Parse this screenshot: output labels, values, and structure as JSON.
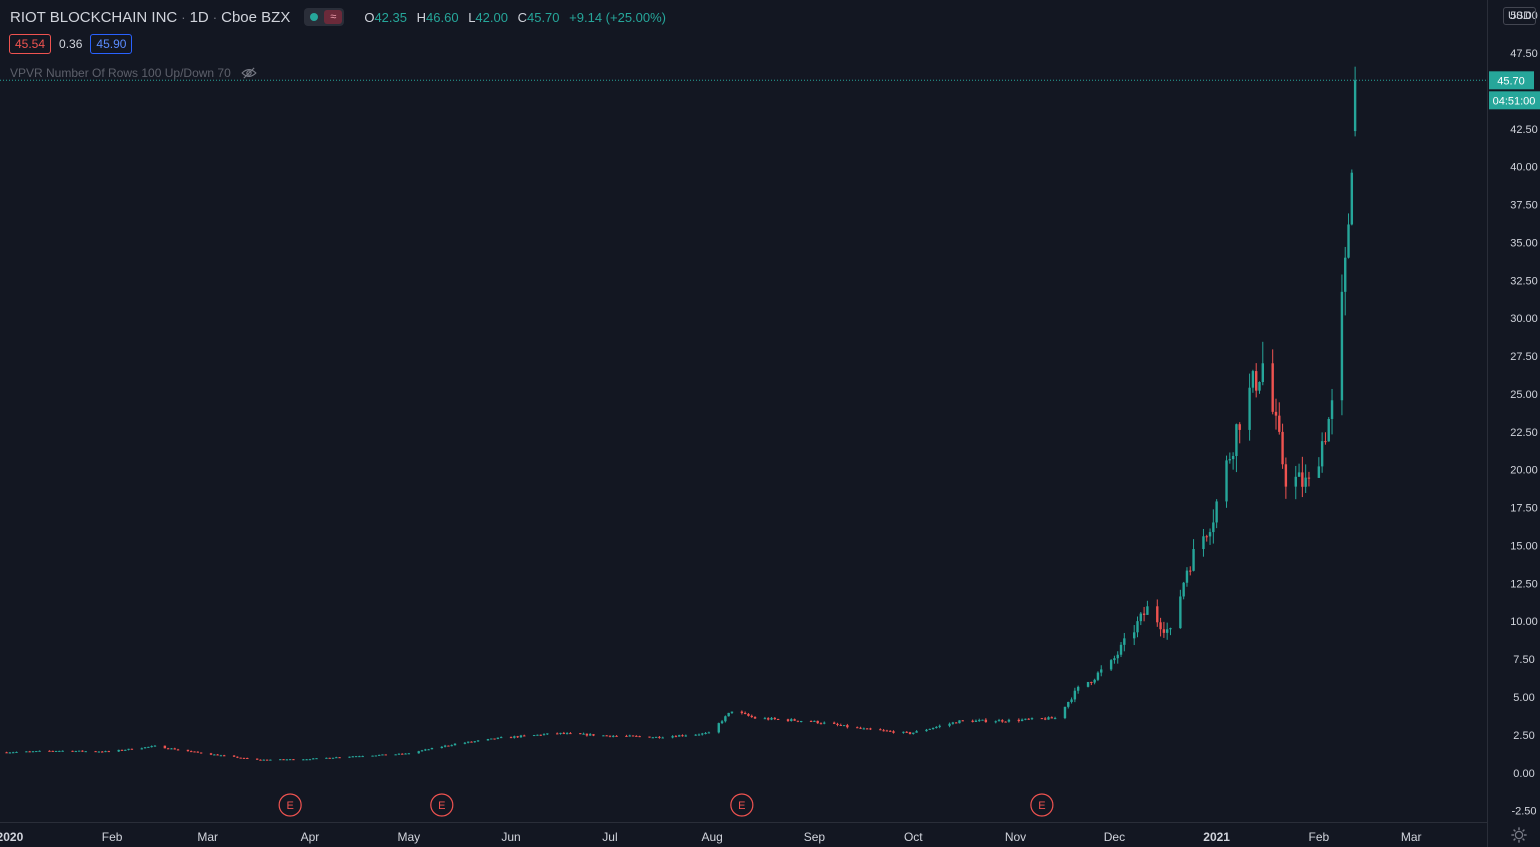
{
  "legend": {
    "symbol_name": "RIOT BLOCKCHAIN INC",
    "interval": "1D",
    "exchange": "Cboe BZX",
    "open_label": "O",
    "open": "42.35",
    "high_label": "H",
    "high": "46.60",
    "low_label": "L",
    "low": "42.00",
    "close_label": "C",
    "close": "45.70",
    "change": "+9.14 (+25.00%)"
  },
  "quote": {
    "bid": "45.54",
    "spread": "0.36",
    "ask": "45.90"
  },
  "indicator": {
    "label": "VPVR Number Of Rows 100 Up/Down 70",
    "icon": "eye-off-icon"
  },
  "price_scale": {
    "currency": "USD",
    "settings_icon": "gear-icon"
  },
  "last_price": {
    "value": "45.70",
    "countdown": "04:51:00"
  },
  "events": {
    "earnings_label": "E",
    "dates": [
      "2020-03-26",
      "2020-05-11",
      "2020-08-10",
      "2020-11-09"
    ]
  },
  "colors": {
    "background": "#131722",
    "up": "#26a69a",
    "down": "#ef5350",
    "grid": "#1e222d",
    "text": "#d1d4dc"
  },
  "chart_data": {
    "type": "candlestick",
    "title": "RIOT BLOCKCHAIN INC · 1D · Cboe BZX",
    "y_ticks": [
      "50.00",
      "47.50",
      "42.50",
      "40.00",
      "37.50",
      "35.00",
      "32.50",
      "30.00",
      "27.50",
      "25.00",
      "22.50",
      "20.00",
      "17.50",
      "15.00",
      "12.50",
      "10.00",
      "7.50",
      "5.00",
      "2.50",
      "0.00",
      "-2.50"
    ],
    "x_ticks": [
      {
        "label": "2020",
        "date": "2020-01-01"
      },
      {
        "label": "Feb",
        "date": "2020-02-01"
      },
      {
        "label": "Mar",
        "date": "2020-03-01"
      },
      {
        "label": "Apr",
        "date": "2020-04-01"
      },
      {
        "label": "May",
        "date": "2020-05-01"
      },
      {
        "label": "Jun",
        "date": "2020-06-01"
      },
      {
        "label": "Jul",
        "date": "2020-07-01"
      },
      {
        "label": "Aug",
        "date": "2020-08-01"
      },
      {
        "label": "Sep",
        "date": "2020-09-01"
      },
      {
        "label": "Oct",
        "date": "2020-10-01"
      },
      {
        "label": "Nov",
        "date": "2020-11-01"
      },
      {
        "label": "Dec",
        "date": "2020-12-01"
      },
      {
        "label": "2021",
        "date": "2021-01-01"
      },
      {
        "label": "Feb",
        "date": "2021-02-01"
      },
      {
        "label": "Mar",
        "date": "2021-03-01"
      }
    ],
    "ylim": [
      -3.25,
      51.0
    ],
    "x_range": [
      "2019-12-29",
      "2021-03-24"
    ],
    "grid": false,
    "close_series": [
      [
        "2019-12-31",
        1.35
      ],
      [
        "2020-01-15",
        1.45
      ],
      [
        "2020-01-31",
        1.4
      ],
      [
        "2020-02-14",
        1.75
      ],
      [
        "2020-02-28",
        1.3
      ],
      [
        "2020-03-16",
        0.85
      ],
      [
        "2020-03-31",
        0.9
      ],
      [
        "2020-04-15",
        1.1
      ],
      [
        "2020-04-30",
        1.25
      ],
      [
        "2020-05-15",
        1.9
      ],
      [
        "2020-05-29",
        2.3
      ],
      [
        "2020-06-15",
        2.6
      ],
      [
        "2020-06-30",
        2.45
      ],
      [
        "2020-07-15",
        2.35
      ],
      [
        "2020-07-31",
        2.6
      ],
      [
        "2020-08-07",
        4.1
      ],
      [
        "2020-08-14",
        3.6
      ],
      [
        "2020-08-31",
        3.4
      ],
      [
        "2020-09-15",
        2.9
      ],
      [
        "2020-09-30",
        2.6
      ],
      [
        "2020-10-15",
        3.4
      ],
      [
        "2020-10-31",
        3.45
      ],
      [
        "2020-11-13",
        3.6
      ],
      [
        "2020-11-20",
        5.5
      ],
      [
        "2020-11-30",
        7.2
      ],
      [
        "2020-12-11",
        10.8
      ],
      [
        "2020-12-18",
        9.2
      ],
      [
        "2020-12-23",
        13.5
      ],
      [
        "2020-12-31",
        17.0
      ],
      [
        "2021-01-08",
        23.5
      ],
      [
        "2021-01-15",
        27.0
      ],
      [
        "2021-01-22",
        19.5
      ],
      [
        "2021-01-29",
        19.0
      ],
      [
        "2021-02-05",
        24.0
      ],
      [
        "2021-02-09",
        33.0
      ],
      [
        "2021-02-10",
        36.6
      ],
      [
        "2021-02-12",
        45.7
      ]
    ],
    "last_candle": {
      "date": "2021-02-12",
      "open": 42.35,
      "high": 46.6,
      "low": 42.0,
      "close": 45.7
    }
  }
}
